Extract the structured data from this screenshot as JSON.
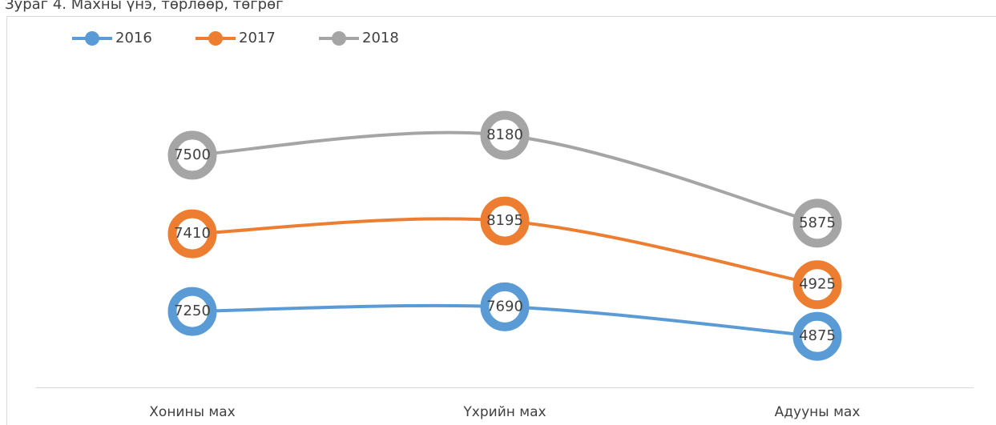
{
  "chart_data": {
    "type": "line",
    "stacked": true,
    "smooth": true,
    "title": "Зураг 4. Махны үнэ, төрлөөр, төгрөг",
    "categories": [
      "Хонины мах",
      "Үхрийн мах",
      "Адууны мах"
    ],
    "series": [
      {
        "name": "2016",
        "color": "#5b9bd5",
        "values": [
          7250,
          7690,
          4875
        ]
      },
      {
        "name": "2017",
        "color": "#ed7d31",
        "values": [
          7410,
          8195,
          4925
        ]
      },
      {
        "name": "2018",
        "color": "#a5a5a5",
        "values": [
          7500,
          8180,
          5875
        ]
      }
    ],
    "legend": "top-left"
  }
}
